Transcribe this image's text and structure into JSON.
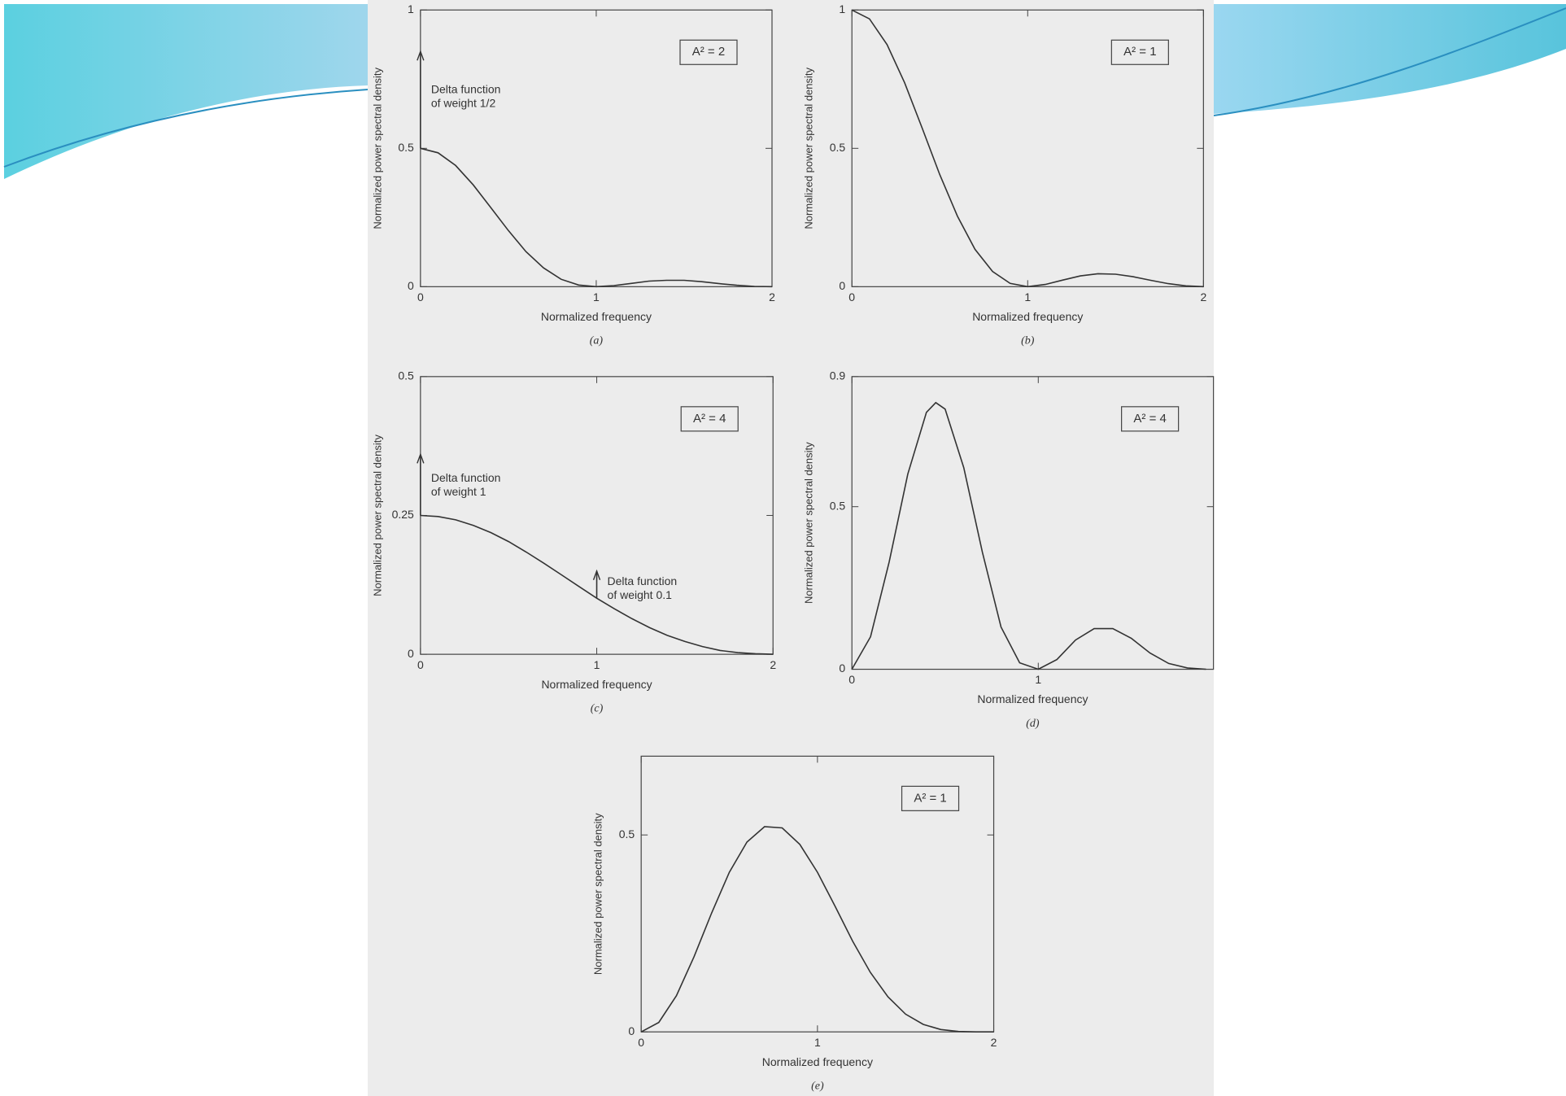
{
  "chart_data": [
    {
      "type": "line",
      "caption": "(a)",
      "xlabel": "Normalized frequency",
      "ylabel": "Normalized power spectral density",
      "annotation": "A² = 2",
      "color": "#333333",
      "x": [
        0,
        0.1,
        0.2,
        0.3,
        0.4,
        0.5,
        0.6,
        0.7,
        0.8,
        0.9,
        1,
        1.1,
        1.2,
        1.3,
        1.4,
        1.5,
        1.6,
        1.7,
        1.8,
        1.9,
        2
      ],
      "values": [
        0.5,
        0.484,
        0.438,
        0.368,
        0.286,
        0.203,
        0.127,
        0.068,
        0.027,
        0.006,
        0,
        0.004,
        0.012,
        0.02,
        0.023,
        0.023,
        0.018,
        0.011,
        0.005,
        0.001,
        0
      ],
      "xlim": [
        0,
        2
      ],
      "ylim": [
        0,
        1
      ],
      "xticks": [
        0,
        1,
        2
      ],
      "yticks": [
        0,
        0.5,
        1
      ],
      "delta_arrows": [
        {
          "x": 0,
          "from": 0.5,
          "to": 0.85,
          "label": [
            "Delta function",
            "of weight 1/2"
          ]
        }
      ]
    },
    {
      "type": "line",
      "caption": "(b)",
      "xlabel": "Normalized frequency",
      "ylabel": "Normalized power spectral density",
      "annotation": "A² = 1",
      "color": "#333333",
      "x": [
        0,
        0.1,
        0.2,
        0.3,
        0.4,
        0.5,
        0.6,
        0.7,
        0.8,
        0.9,
        1,
        1.1,
        1.2,
        1.3,
        1.4,
        1.5,
        1.6,
        1.7,
        1.8,
        1.9,
        2
      ],
      "values": [
        1,
        0.968,
        0.875,
        0.737,
        0.573,
        0.405,
        0.255,
        0.135,
        0.055,
        0.012,
        0,
        0.008,
        0.024,
        0.039,
        0.047,
        0.045,
        0.036,
        0.023,
        0.011,
        0.003,
        0
      ],
      "xlim": [
        0,
        2
      ],
      "ylim": [
        0,
        1
      ],
      "xticks": [
        0,
        1,
        2
      ],
      "yticks": [
        0,
        0.5,
        1
      ]
    },
    {
      "type": "line",
      "caption": "(c)",
      "xlabel": "Normalized frequency",
      "ylabel": "Normalized power spectral density",
      "annotation": "A² = 4",
      "color": "#333333",
      "x": [
        0,
        0.1,
        0.2,
        0.3,
        0.4,
        0.5,
        0.6,
        0.7,
        0.8,
        0.9,
        1,
        1.1,
        1.2,
        1.3,
        1.4,
        1.5,
        1.6,
        1.7,
        1.8,
        1.9,
        2
      ],
      "values": [
        0.25,
        0.248,
        0.242,
        0.232,
        0.219,
        0.203,
        0.184,
        0.164,
        0.143,
        0.122,
        0.101,
        0.082,
        0.064,
        0.048,
        0.034,
        0.023,
        0.014,
        0.007,
        0.003,
        0.001,
        0
      ],
      "xlim": [
        0,
        2
      ],
      "ylim": [
        0,
        0.5
      ],
      "xticks": [
        0,
        1,
        2
      ],
      "yticks": [
        0,
        0.25,
        0.5
      ],
      "delta_arrows": [
        {
          "x": 0,
          "from": 0.25,
          "to": 0.36,
          "label": [
            "Delta function",
            "of weight 1"
          ]
        },
        {
          "x": 1,
          "from": 0.101,
          "to": 0.15,
          "label": [
            "Delta function",
            "of weight 0.1"
          ]
        }
      ]
    },
    {
      "type": "line",
      "caption": "(d)",
      "xlabel": "Normalized frequency",
      "ylabel": "Normalized power spectral density",
      "annotation": "A² = 4",
      "color": "#333333",
      "x": [
        0,
        0.1,
        0.2,
        0.3,
        0.4,
        0.45,
        0.5,
        0.6,
        0.7,
        0.8,
        0.9,
        1,
        1.1,
        1.2,
        1.3,
        1.4,
        1.5,
        1.6,
        1.7,
        1.8,
        1.9
      ],
      "values": [
        0,
        0.1,
        0.33,
        0.6,
        0.79,
        0.82,
        0.8,
        0.62,
        0.36,
        0.13,
        0.02,
        0,
        0.03,
        0.09,
        0.125,
        0.125,
        0.095,
        0.05,
        0.018,
        0.004,
        0
      ],
      "xlim": [
        0,
        1.94
      ],
      "ylim": [
        0,
        0.9
      ],
      "xticks": [
        0,
        1
      ],
      "yticks": [
        0,
        0.5,
        0.9
      ]
    },
    {
      "type": "line",
      "caption": "(e)",
      "xlabel": "Normalized frequency",
      "ylabel": "Normalized power spectral density",
      "annotation": "A² = 1",
      "color": "#333333",
      "x": [
        0,
        0.1,
        0.2,
        0.3,
        0.4,
        0.5,
        0.6,
        0.7,
        0.8,
        0.9,
        1,
        1.1,
        1.2,
        1.3,
        1.4,
        1.5,
        1.6,
        1.7,
        1.8,
        1.9,
        2
      ],
      "values": [
        0,
        0.024,
        0.092,
        0.191,
        0.302,
        0.405,
        0.482,
        0.521,
        0.518,
        0.476,
        0.405,
        0.319,
        0.23,
        0.151,
        0.089,
        0.045,
        0.019,
        0.006,
        0.001,
        0,
        0
      ],
      "xlim": [
        0,
        2
      ],
      "ylim": [
        0,
        0.7
      ],
      "xticks": [
        0,
        1,
        2
      ],
      "yticks": [
        0,
        0.5
      ]
    }
  ]
}
